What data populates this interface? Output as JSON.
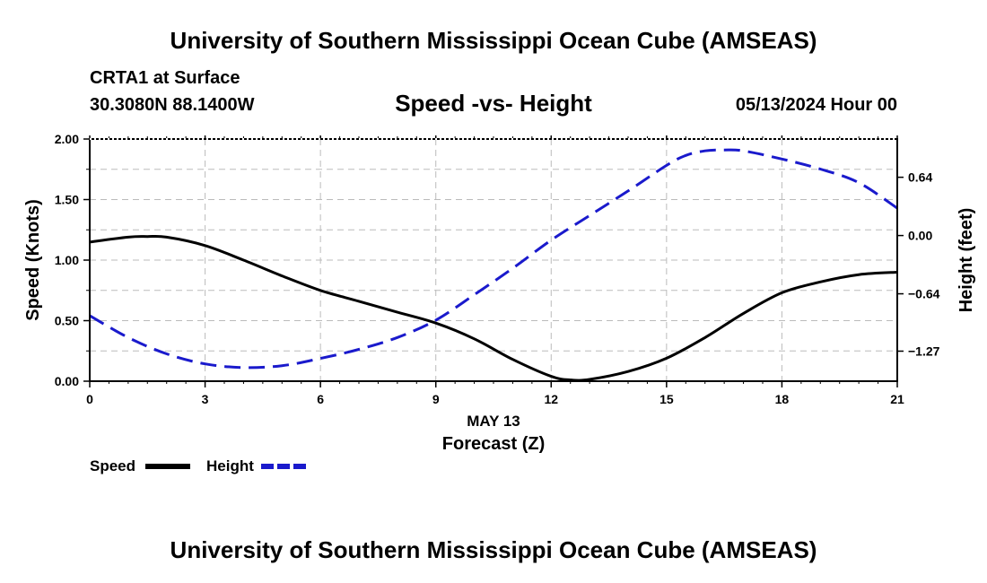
{
  "header": {
    "title": "University of Southern Mississippi Ocean Cube (AMSEAS)",
    "station": "CRTA1 at Surface",
    "coords": "30.3080N  88.1400W",
    "datetime": "05/13/2024 Hour 00"
  },
  "footer": {
    "title": "University of Southern Mississippi Ocean Cube (AMSEAS)"
  },
  "chart_data": {
    "type": "line",
    "title": "Speed -vs- Height",
    "xlabel": "Forecast (Z)",
    "xsublabel": "MAY 13",
    "ylabel": "Speed (Knots)",
    "y2label": "Height (feet)",
    "xlim": [
      0,
      21
    ],
    "ylim": [
      0,
      2
    ],
    "y2lim": [
      -1.6,
      1.06
    ],
    "xticks": [
      0,
      3,
      6,
      9,
      12,
      15,
      18,
      21
    ],
    "xtick_labels": [
      "0",
      "3",
      "6",
      "9",
      "12",
      "15",
      "18",
      "21"
    ],
    "yticks": [
      0,
      0.5,
      1,
      1.5,
      2
    ],
    "ytick_labels": [
      "0.00",
      "0.50",
      "1.00",
      "1.50",
      "2.00"
    ],
    "y2ticks": [
      -1.27,
      -0.64,
      0,
      0.64
    ],
    "y2tick_labels": [
      "-1.27",
      "-0.64",
      "0.00",
      "0.64"
    ],
    "grid": true,
    "legend": {
      "position": "bottom-left"
    },
    "series": [
      {
        "name": "Speed",
        "axis": "left",
        "color": "#000000",
        "style": "solid",
        "x": [
          0,
          1,
          1.5,
          2,
          3,
          4,
          5,
          6,
          7,
          8,
          9,
          10,
          11,
          12,
          12.5,
          13,
          14,
          15,
          16,
          17,
          18,
          19,
          20,
          21
        ],
        "values": [
          1.15,
          1.19,
          1.195,
          1.19,
          1.12,
          1.0,
          0.87,
          0.75,
          0.66,
          0.57,
          0.48,
          0.35,
          0.18,
          0.04,
          0.01,
          0.015,
          0.08,
          0.19,
          0.36,
          0.56,
          0.73,
          0.82,
          0.88,
          0.9
        ]
      },
      {
        "name": "Height",
        "axis": "right",
        "color": "#1a1acc",
        "style": "dashed",
        "x": [
          0,
          1,
          2,
          3,
          4,
          5,
          6,
          7,
          8,
          9,
          10,
          11,
          12,
          13,
          14,
          15,
          15.5,
          16,
          16.5,
          17,
          18,
          19,
          20,
          21
        ],
        "values": [
          -0.88,
          -1.12,
          -1.3,
          -1.41,
          -1.45,
          -1.43,
          -1.35,
          -1.25,
          -1.12,
          -0.93,
          -0.65,
          -0.36,
          -0.05,
          0.22,
          0.49,
          0.77,
          0.88,
          0.93,
          0.94,
          0.93,
          0.84,
          0.73,
          0.58,
          0.3
        ]
      }
    ]
  }
}
